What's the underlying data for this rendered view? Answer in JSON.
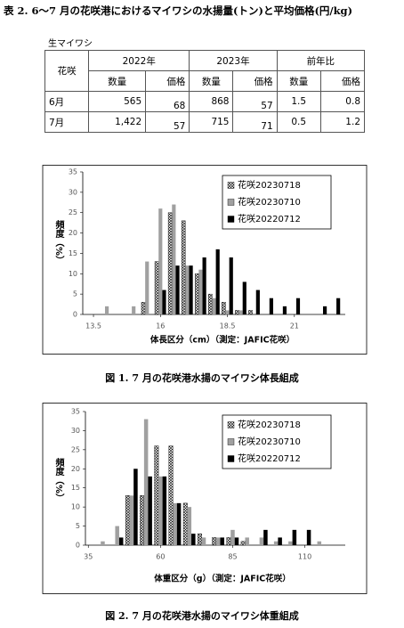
{
  "title": "表 2. 6～7 月の花咲港におけるマイワシの水揚量(トン)と平均価格(円/kg)",
  "table": {
    "caption": "生マイワシ",
    "corner": "花咲",
    "groups": [
      "2022年",
      "2023年",
      "前年比"
    ],
    "subheads": [
      "数量",
      "価格",
      "数量",
      "価格",
      "数量",
      "価格"
    ],
    "rows": [
      [
        "6月",
        "565",
        "68",
        "868",
        "57",
        "1.5",
        "0.8"
      ],
      [
        "7月",
        "1,422",
        "57",
        "715",
        "71",
        "0.5",
        "1.2"
      ]
    ]
  },
  "chart_data": [
    {
      "type": "bar",
      "caption": "図 1.  7 月の花咲港水揚のマイワシ体長組成",
      "xlabel": "体長区分（cm）（測定：JAFIC花咲）",
      "ylabel": "頻度（%）",
      "x": [
        13.5,
        14,
        14.5,
        15,
        15.5,
        16,
        16.5,
        17,
        17.5,
        18,
        18.5,
        19,
        19.5,
        20,
        20.5,
        21,
        21.5,
        22,
        22.5
      ],
      "series": [
        {
          "name": "花咲20230718",
          "color": "#ffffff",
          "pattern": "crosshatch",
          "values": [
            0,
            0,
            0,
            0,
            3,
            13,
            25,
            23,
            10,
            5,
            3,
            1,
            1,
            0,
            0,
            0,
            0,
            0,
            0
          ]
        },
        {
          "name": "花咲20230710",
          "color": "#a0a0a0",
          "values": [
            0,
            2,
            0,
            2,
            13,
            26,
            27,
            12,
            11,
            4,
            1,
            1,
            0,
            0,
            0,
            0,
            0,
            0,
            0
          ]
        },
        {
          "name": "花咲20220712",
          "color": "#000000",
          "values": [
            0,
            0,
            0,
            0,
            0,
            6,
            12,
            12,
            14,
            16,
            14,
            8,
            6,
            4,
            2,
            4,
            0,
            2,
            4
          ]
        }
      ],
      "xlim": [
        13.1,
        22.9
      ],
      "xticks": [
        13.5,
        16,
        18.5,
        21
      ],
      "ylim": [
        0,
        35
      ],
      "yticks": [
        0,
        5,
        10,
        15,
        20,
        25,
        30,
        35
      ],
      "grid": false,
      "legend": "upper right"
    },
    {
      "type": "bar",
      "caption": "図 2.  7 月の花咲港水揚のマイワシ体重組成",
      "xlabel": "体重区分（g）（測定：JAFIC花咲）",
      "ylabel": "頻度（%）",
      "x": [
        40,
        45,
        50,
        55,
        60,
        65,
        70,
        75,
        80,
        85,
        90,
        95,
        100,
        105,
        110,
        115,
        120
      ],
      "series": [
        {
          "name": "花咲20230718",
          "color": "#ffffff",
          "pattern": "crosshatch",
          "values": [
            0,
            0,
            13,
            13,
            26,
            26,
            11,
            3,
            2,
            2,
            1,
            0,
            0,
            0,
            0,
            0,
            0
          ]
        },
        {
          "name": "花咲20230710",
          "color": "#a0a0a0",
          "values": [
            1,
            5,
            13,
            33,
            18,
            11,
            10,
            2,
            2,
            4,
            2,
            2,
            1,
            1,
            0,
            1,
            0
          ]
        },
        {
          "name": "花咲20220712",
          "color": "#000000",
          "values": [
            0,
            2,
            20,
            18,
            18,
            11,
            3,
            0,
            2,
            2,
            0,
            4,
            2,
            4,
            4,
            0,
            0
          ]
        }
      ],
      "xlim": [
        34,
        124
      ],
      "xticks": [
        35,
        60,
        85,
        110
      ],
      "ylim": [
        0,
        35
      ],
      "yticks": [
        0,
        5,
        10,
        15,
        20,
        25,
        30,
        35
      ],
      "grid": false,
      "legend": "upper right"
    }
  ]
}
